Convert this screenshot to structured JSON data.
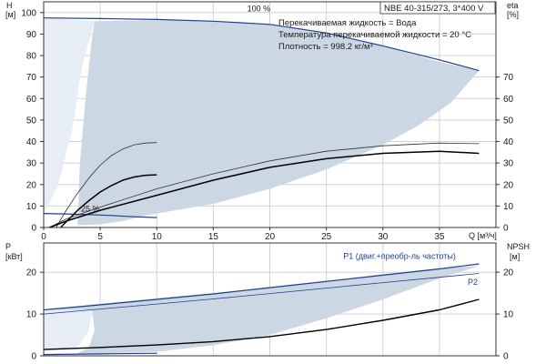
{
  "chart_data": [
    {
      "id": "head",
      "type": "line",
      "title": "NBE 40-315/273, 3*400 V",
      "info": [
        "Перекачиваемая жидкость = Вода",
        "Температура перекачиваемой жидкости = 20 °C",
        "Плотность = 998.2 кг/м³"
      ],
      "ylabel_left": [
        "H",
        "[м]"
      ],
      "ylabel_right": [
        "eta",
        "[%]"
      ],
      "xlabel": "Q [м³/ч]",
      "xlim": [
        0,
        40
      ],
      "ylim": [
        0,
        105
      ],
      "x_ticks": [
        "0",
        "5",
        "10",
        "15",
        "20",
        "25",
        "30",
        "35"
      ],
      "x_tick_values": [
        0,
        5,
        10,
        15,
        20,
        25,
        30,
        35
      ],
      "y_ticks_left": [
        "0",
        "10",
        "20",
        "30",
        "40",
        "50",
        "60",
        "70",
        "80",
        "90",
        "100"
      ],
      "y_tick_values_left": [
        0,
        10,
        20,
        30,
        40,
        50,
        60,
        70,
        80,
        90,
        100
      ],
      "y_ticks_right": [
        "0",
        "10",
        "20",
        "30",
        "40",
        "50",
        "60",
        "70"
      ],
      "y_tick_values_right": [
        0,
        10,
        20,
        30,
        40,
        50,
        60,
        70
      ],
      "grid": true,
      "annotations": [
        {
          "text": "100 %",
          "x": 18,
          "y": 100.5
        },
        {
          "text": "25 %",
          "x": 3.3,
          "y": 7.5
        }
      ],
      "band": {
        "upper": [
          [
            4.5,
            96
          ],
          [
            5,
            96
          ],
          [
            10,
            96.5
          ],
          [
            15,
            96
          ],
          [
            20,
            94.5
          ],
          [
            25,
            90.5
          ],
          [
            30,
            84.5
          ],
          [
            35,
            77
          ],
          [
            38.5,
            73
          ]
        ],
        "lower": [
          [
            38.5,
            73
          ],
          [
            36,
            58
          ],
          [
            33,
            47
          ],
          [
            30,
            38.5
          ],
          [
            25,
            27
          ],
          [
            20,
            18
          ],
          [
            15,
            11
          ],
          [
            10,
            6.5
          ],
          [
            9,
            5.5
          ],
          [
            7,
            3
          ],
          [
            5,
            1.5
          ],
          [
            3,
            1
          ],
          [
            3.2,
            30
          ],
          [
            3.7,
            60
          ],
          [
            4.2,
            85
          ],
          [
            4.5,
            96
          ]
        ]
      },
      "left_band": [
        [
          0,
          97.5
        ],
        [
          4.5,
          96
        ],
        [
          3.4,
          75
        ],
        [
          2.5,
          45
        ],
        [
          1.3,
          20
        ],
        [
          0,
          6.5
        ]
      ],
      "series": [
        {
          "kind": "H100",
          "color": "#1c3f8f",
          "width": 1.2,
          "values": [
            [
              0,
              97.5
            ],
            [
              5,
              97.2
            ],
            [
              10,
              96.8
            ],
            [
              15,
              96
            ],
            [
              20,
              94.5
            ],
            [
              25,
              90.5
            ],
            [
              30,
              84.5
            ],
            [
              35,
              78
            ],
            [
              38.5,
              73
            ]
          ]
        },
        {
          "kind": "H25",
          "color": "#1c3f8f",
          "width": 1.2,
          "values": [
            [
              0,
              6.5
            ],
            [
              2,
              6.3
            ],
            [
              4,
              6
            ],
            [
              6,
              5.6
            ],
            [
              8,
              5
            ],
            [
              10,
              4.6
            ]
          ]
        },
        {
          "kind": "eta-thin",
          "color": "#333333",
          "width": 0.8,
          "values": [
            [
              1.1,
              0
            ],
            [
              2,
              8
            ],
            [
              3,
              16
            ],
            [
              4,
              23
            ],
            [
              5,
              29
            ],
            [
              6,
              33.5
            ],
            [
              7,
              36.5
            ],
            [
              8,
              38.5
            ],
            [
              9,
              39.3
            ],
            [
              10,
              39.5
            ]
          ]
        },
        {
          "kind": "eta-thick",
          "color": "#000000",
          "width": 1.5,
          "values": [
            [
              1.5,
              0
            ],
            [
              3,
              8
            ],
            [
              4,
              12.5
            ],
            [
              5,
              16.5
            ],
            [
              6,
              19.5
            ],
            [
              7,
              22
            ],
            [
              8,
              23.5
            ],
            [
              9,
              24.3
            ],
            [
              10,
              24.5
            ]
          ]
        },
        {
          "kind": "eta-big-thin",
          "color": "#333333",
          "width": 0.8,
          "values": [
            [
              0.5,
              0
            ],
            [
              2,
              4
            ],
            [
              5,
              9.5
            ],
            [
              10,
              18
            ],
            [
              15,
              25
            ],
            [
              20,
              31
            ],
            [
              25,
              35.5
            ],
            [
              30,
              38
            ],
            [
              35,
              39.3
            ],
            [
              38.5,
              39
            ]
          ]
        },
        {
          "kind": "eta-big-thick",
          "color": "#000000",
          "width": 1.5,
          "values": [
            [
              0.5,
              0
            ],
            [
              2,
              3
            ],
            [
              5,
              8
            ],
            [
              10,
              15
            ],
            [
              15,
              22
            ],
            [
              20,
              28
            ],
            [
              25,
              32
            ],
            [
              30,
              34.5
            ],
            [
              35,
              35.5
            ],
            [
              38.5,
              34.5
            ]
          ]
        }
      ]
    },
    {
      "id": "power",
      "type": "line",
      "ylabel_left": [
        "P",
        "[кВт]"
      ],
      "ylabel_right": [
        "NPSH",
        "[м]"
      ],
      "xlim": [
        0,
        40
      ],
      "ylim": [
        0,
        27
      ],
      "y_ticks_left": [
        "0",
        "10",
        "20"
      ],
      "y_tick_values_left": [
        0,
        10,
        20
      ],
      "y_ticks_right": [
        "0",
        "10",
        "20"
      ],
      "y_tick_values_right": [
        0,
        10,
        20
      ],
      "grid": true,
      "annotations": [
        {
          "text": "P1 (двиг.+преобр-ль частоты)",
          "x": 26.5,
          "y": 23.2,
          "color": "#1c3f8f"
        },
        {
          "text": "P2",
          "x": 37.5,
          "y": 17,
          "color": "#1c3f8f"
        }
      ],
      "band": {
        "upper": [
          [
            0,
            11
          ],
          [
            5,
            12.5
          ],
          [
            10,
            13.8
          ],
          [
            15,
            15
          ],
          [
            20,
            16.5
          ],
          [
            25,
            18
          ],
          [
            30,
            19.5
          ],
          [
            35,
            21
          ],
          [
            38.5,
            21.5
          ]
        ],
        "lower": [
          [
            38.5,
            21.5
          ],
          [
            35,
            18.5
          ],
          [
            30,
            13.5
          ],
          [
            25,
            9
          ],
          [
            20,
            5
          ],
          [
            15,
            2.5
          ],
          [
            10,
            1
          ],
          [
            5,
            0.5
          ],
          [
            3,
            0.6
          ],
          [
            4,
            2
          ],
          [
            4.5,
            6
          ],
          [
            4.3,
            11
          ]
        ]
      },
      "left_band": [
        [
          0,
          11
        ],
        [
          4.3,
          11
        ],
        [
          4,
          6
        ],
        [
          3,
          2
        ],
        [
          0,
          1.5
        ]
      ],
      "series": [
        {
          "kind": "P1-100",
          "color": "#1c3f8f",
          "width": 1.2,
          "values": [
            [
              0,
              11
            ],
            [
              5,
              12.2
            ],
            [
              10,
              13.5
            ],
            [
              15,
              14.8
            ],
            [
              20,
              16.3
            ],
            [
              25,
              17.8
            ],
            [
              30,
              19.3
            ],
            [
              35,
              20.8
            ],
            [
              38.5,
              22
            ]
          ]
        },
        {
          "kind": "P2-100",
          "color": "#1c3f8f",
          "width": 0.8,
          "values": [
            [
              0,
              10
            ],
            [
              5,
              11.2
            ],
            [
              10,
              12.4
            ],
            [
              15,
              13.6
            ],
            [
              20,
              14.9
            ],
            [
              25,
              16.2
            ],
            [
              30,
              17.5
            ],
            [
              35,
              18.8
            ],
            [
              38.5,
              19.7
            ]
          ]
        },
        {
          "kind": "P1-25",
          "color": "#1c3f8f",
          "width": 1.2,
          "values": [
            [
              0,
              0.3
            ],
            [
              5,
              0.45
            ],
            [
              10,
              0.6
            ]
          ]
        },
        {
          "kind": "NPSH",
          "color": "#000000",
          "width": 1.4,
          "values": [
            [
              0,
              1.5
            ],
            [
              5,
              2
            ],
            [
              10,
              2.6
            ],
            [
              15,
              3.4
            ],
            [
              20,
              4.6
            ],
            [
              25,
              6.3
            ],
            [
              30,
              8.5
            ],
            [
              35,
              11
            ],
            [
              38.5,
              13.5
            ]
          ]
        }
      ]
    }
  ]
}
